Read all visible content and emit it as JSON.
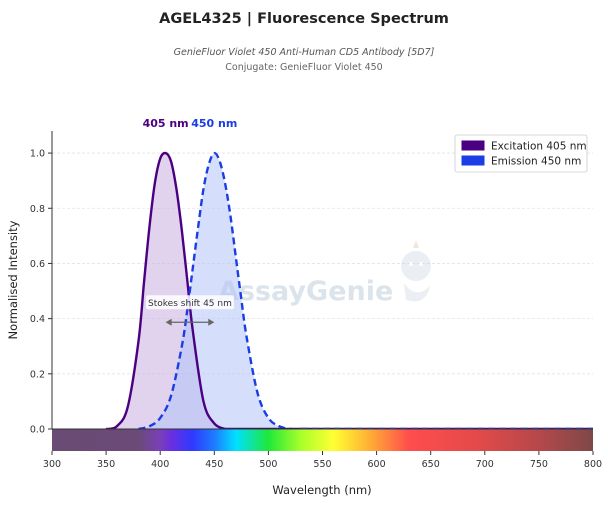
{
  "header": {
    "title": "AGEL4325  |  Fluorescence Spectrum",
    "subtitle": "GenieFluor Violet 450 Anti-Human CD5 Antibody [5D7]",
    "conjugate": "Conjugate: GenieFluor Violet 450"
  },
  "watermark": "AssayGenie",
  "chart_data": {
    "type": "line",
    "xlabel": "Wavelength (nm)",
    "ylabel": "Normalised Intensity",
    "xlim": [
      300,
      800
    ],
    "ylim": [
      0,
      1.08
    ],
    "xticks": [
      300,
      350,
      400,
      450,
      500,
      550,
      600,
      650,
      700,
      750,
      800
    ],
    "yticks": [
      0.0,
      0.2,
      0.4,
      0.6,
      0.8,
      1.0
    ],
    "grid": true,
    "legend_position": "top-right",
    "series": [
      {
        "name": "Excitation  405 nm",
        "peak_nm": 405,
        "peak_label": "405 nm",
        "color": "#4b0082",
        "fill": "#c9aee0",
        "style": "solid",
        "x": [
          350,
          360,
          370,
          380,
          385,
          390,
          395,
          400,
          405,
          410,
          415,
          420,
          425,
          430,
          440,
          450,
          460
        ],
        "y": [
          0.0,
          0.01,
          0.08,
          0.32,
          0.53,
          0.73,
          0.89,
          0.98,
          1.0,
          0.97,
          0.87,
          0.72,
          0.54,
          0.36,
          0.1,
          0.02,
          0.0
        ]
      },
      {
        "name": "Emission  450 nm",
        "peak_nm": 450,
        "peak_label": "450 nm",
        "color": "#1a3de6",
        "fill": "#b3c2f7",
        "style": "dashed",
        "x": [
          380,
          390,
          400,
          410,
          420,
          425,
          430,
          435,
          440,
          445,
          450,
          455,
          460,
          465,
          470,
          475,
          480,
          490,
          500,
          510,
          520,
          530
        ],
        "y": [
          0.0,
          0.01,
          0.04,
          0.12,
          0.3,
          0.43,
          0.58,
          0.73,
          0.87,
          0.96,
          1.0,
          0.97,
          0.89,
          0.77,
          0.62,
          0.47,
          0.33,
          0.13,
          0.04,
          0.01,
          0.0,
          0.0
        ]
      }
    ],
    "annotation": {
      "text": "Stokes shift  45 nm",
      "x_from": 405,
      "x_to": 450,
      "y": 0.445
    }
  }
}
